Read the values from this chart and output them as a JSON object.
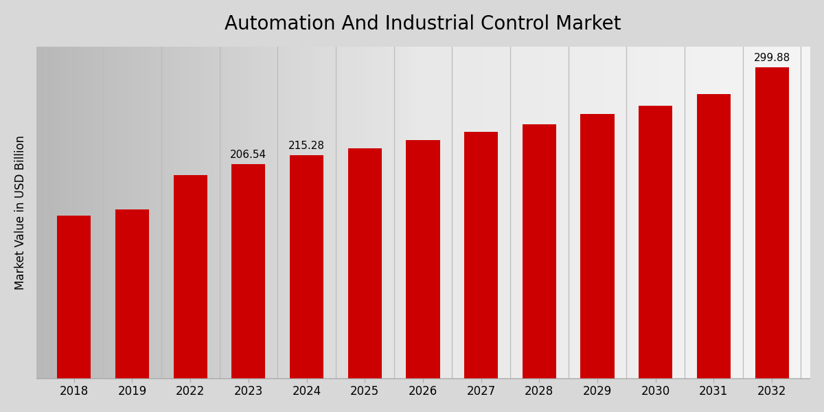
{
  "title": "Automation And Industrial Control Market",
  "ylabel": "Market Value in USD Billion",
  "categories": [
    "2018",
    "2019",
    "2022",
    "2023",
    "2024",
    "2025",
    "2026",
    "2027",
    "2028",
    "2029",
    "2030",
    "2031",
    "2032"
  ],
  "values": [
    157.0,
    163.0,
    196.0,
    206.54,
    215.28,
    221.5,
    230.0,
    238.0,
    245.0,
    255.0,
    263.0,
    274.0,
    299.88
  ],
  "bar_color": "#CC0000",
  "bar_labels": {
    "2023": "206.54",
    "2024": "215.28",
    "2032": "299.88"
  },
  "ylim": [
    0,
    320
  ],
  "title_fontsize": 20,
  "label_fontsize": 12,
  "tick_fontsize": 12,
  "bar_label_fontsize": 11,
  "bg_left_color": "#c8c8c8",
  "bg_right_color": "#f0f0f0",
  "grid_line_color": "#bbbbbb",
  "spine_bottom_color": "#aaaaaa"
}
